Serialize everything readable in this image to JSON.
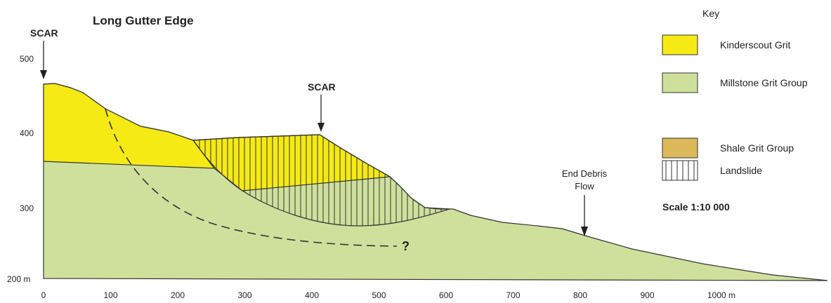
{
  "header": {
    "title": "Long Gutter Edge"
  },
  "annotations": {
    "scar_left": "SCAR",
    "scar_middle": "SCAR",
    "end_debris_flow": [
      "End Debris",
      "Flow"
    ],
    "question": "?"
  },
  "y_axis": {
    "labels": [
      "500",
      "400",
      "300",
      "200 m"
    ]
  },
  "x_axis": {
    "labels": [
      "0",
      "100",
      "200",
      "300",
      "400",
      "500",
      "600",
      "700",
      "800",
      "900",
      "1000 m"
    ]
  },
  "key": {
    "title": "Key",
    "items": [
      "Kinderscout Grit",
      "Millstone Grit Group",
      "Shale Grit Group",
      "Landslide"
    ],
    "scale": "Scale 1:10 000"
  }
}
